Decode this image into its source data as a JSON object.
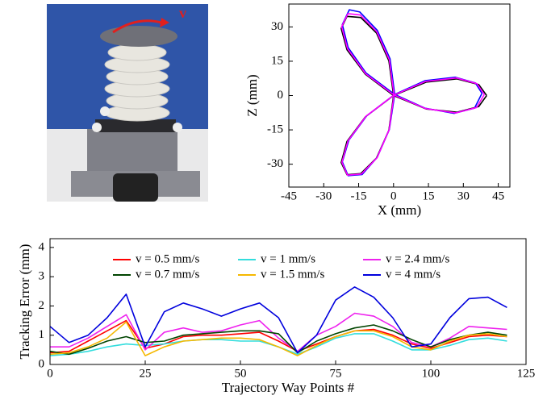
{
  "photo": {
    "annotation": "v"
  },
  "chart_data": [
    {
      "type": "line",
      "xlabel": "X (mm)",
      "ylabel": "Z (mm)",
      "xlim": [
        -45,
        50
      ],
      "ylim": [
        -40,
        40
      ],
      "xticks": [
        -45,
        -30,
        -15,
        0,
        15,
        30,
        45
      ],
      "yticks": [
        -30,
        -15,
        0,
        15,
        30
      ],
      "series": [
        {
          "color": "#000000",
          "x": [
            40,
            36.6,
            27.3,
            14.1,
            0,
            -12.1,
            -20.0,
            -22.5,
            -20,
            -14.1,
            -7.3,
            -2.0,
            0,
            -2.0,
            -7.3,
            -14.1,
            -20,
            -22.5,
            -20.0,
            -12.1,
            0,
            14.1,
            27.3,
            36.6,
            40
          ],
          "values": [
            0,
            4.8,
            7.3,
            5.9,
            0,
            -9.3,
            -20.0,
            -29.3,
            -34.6,
            -34.1,
            -27.3,
            -15.2,
            0,
            15.2,
            27.3,
            34.1,
            34.6,
            29.3,
            20.0,
            9.3,
            0,
            -5.9,
            -7.3,
            -4.8,
            0
          ]
        },
        {
          "color": "#0000ff",
          "x": [
            38,
            35.2,
            26.5,
            13.5,
            0.5,
            -11.5,
            -19.2,
            -22.0,
            -19.5,
            -13.5,
            -7.0,
            -1.8,
            0.5,
            -1.5,
            -7.0,
            -14.5,
            -19.0,
            -22.0,
            -19.5,
            -11.8,
            0.5,
            13.5,
            26.0,
            34.8,
            38
          ],
          "values": [
            1.0,
            5.5,
            8.0,
            6.5,
            0.5,
            -8.8,
            -19.5,
            -29.0,
            -35.0,
            -34.5,
            -27.0,
            -14.8,
            0.5,
            16.0,
            28.5,
            36.5,
            37.5,
            31.0,
            21.0,
            9.8,
            0.5,
            -5.5,
            -7.8,
            -5.5,
            1.0
          ]
        },
        {
          "color": "#ff00ff",
          "x": [
            39,
            35.8,
            27.0,
            13.8,
            0.2,
            -11.8,
            -19.6,
            -22.2,
            -19.8,
            -13.8,
            -7.1,
            -1.9,
            0.2,
            -1.8,
            -7.2,
            -14.3,
            -19.6,
            -22.3,
            -19.8,
            -12.0,
            0.2,
            13.8,
            26.7,
            35.7,
            39
          ],
          "values": [
            0.5,
            5.2,
            7.7,
            6.2,
            0.2,
            -9.0,
            -19.8,
            -29.2,
            -34.8,
            -34.3,
            -27.2,
            -15.0,
            0.2,
            15.6,
            27.9,
            35.2,
            35.8,
            30.1,
            20.5,
            9.5,
            0.2,
            -5.7,
            -7.6,
            -5.2,
            0.5
          ]
        }
      ]
    },
    {
      "type": "line",
      "xlabel": "Trajectory Way Points #",
      "ylabel": "Tracking Error (mm)",
      "xlim": [
        0,
        125
      ],
      "ylim": [
        0,
        4.3
      ],
      "xticks": [
        0,
        25,
        50,
        75,
        100,
        125
      ],
      "yticks": [
        0,
        1,
        2,
        3,
        4
      ],
      "legend": true,
      "x": [
        0,
        5,
        10,
        15,
        20,
        25,
        30,
        35,
        40,
        45,
        50,
        55,
        60,
        65,
        70,
        75,
        80,
        85,
        90,
        95,
        100,
        105,
        110,
        115,
        120
      ],
      "series": [
        {
          "name": "v = 0.5 mm/s",
          "color": "#ff0000",
          "values": [
            0.4,
            0.45,
            0.8,
            1.15,
            1.5,
            0.55,
            0.7,
            0.95,
            1.0,
            1.0,
            1.05,
            1.1,
            0.8,
            0.45,
            0.7,
            0.95,
            1.15,
            1.2,
            1.0,
            0.7,
            0.55,
            0.75,
            0.95,
            1.0,
            0.95
          ]
        },
        {
          "name": "v = 1 mm/s",
          "color": "#33dddd",
          "values": [
            0.3,
            0.35,
            0.45,
            0.6,
            0.7,
            0.65,
            0.7,
            0.8,
            0.85,
            0.85,
            0.8,
            0.8,
            0.6,
            0.35,
            0.6,
            0.9,
            1.05,
            1.05,
            0.8,
            0.5,
            0.5,
            0.65,
            0.85,
            0.9,
            0.8
          ]
        },
        {
          "name": "v = 2.4 mm/s",
          "color": "#ee22ee",
          "values": [
            0.6,
            0.6,
            0.9,
            1.3,
            1.7,
            0.5,
            1.1,
            1.25,
            1.1,
            1.15,
            1.35,
            1.5,
            0.9,
            0.45,
            1.0,
            1.3,
            1.75,
            1.65,
            1.3,
            0.75,
            0.6,
            0.9,
            1.3,
            1.25,
            1.2
          ]
        },
        {
          "name": "v = 0.7 mm/s",
          "color": "#004400",
          "values": [
            0.45,
            0.35,
            0.55,
            0.8,
            0.95,
            0.75,
            0.8,
            1.0,
            1.05,
            1.1,
            1.15,
            1.15,
            1.05,
            0.4,
            0.8,
            1.05,
            1.25,
            1.35,
            1.15,
            0.85,
            0.6,
            0.85,
            1.0,
            1.1,
            1.0
          ]
        },
        {
          "name": "v = 1.5 mm/s",
          "color": "#f5b800",
          "values": [
            0.35,
            0.4,
            0.6,
            0.9,
            1.45,
            0.3,
            0.6,
            0.8,
            0.85,
            0.9,
            0.9,
            0.85,
            0.6,
            0.3,
            0.65,
            0.95,
            1.15,
            1.15,
            0.95,
            0.6,
            0.5,
            0.8,
            1.0,
            1.05,
            0.95
          ]
        },
        {
          "name": "v = 4 mm/s",
          "color": "#0000dd",
          "values": [
            1.3,
            0.75,
            1.0,
            1.6,
            2.4,
            0.6,
            1.8,
            2.1,
            1.9,
            1.65,
            1.9,
            2.1,
            1.6,
            0.4,
            1.0,
            2.2,
            2.65,
            2.3,
            1.6,
            0.6,
            0.7,
            1.6,
            2.25,
            2.3,
            1.95
          ]
        }
      ]
    }
  ]
}
